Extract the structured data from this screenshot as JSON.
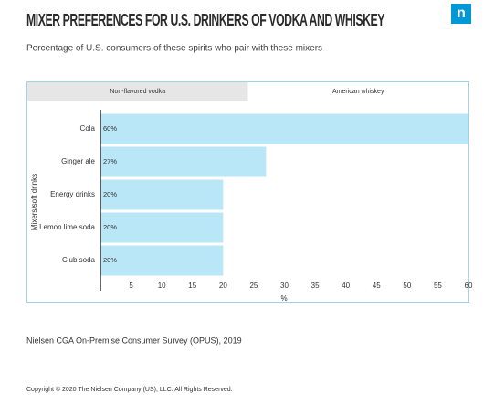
{
  "header": {
    "title": "MIXER PREFERENCES FOR U.S. DRINKERS OF VODKA AND WHISKEY",
    "subtitle": "Percentage of U.S. consumers of these spirits who pair with these mixers",
    "logo": "n"
  },
  "chart_data": {
    "type": "bar",
    "orientation": "horizontal",
    "tabs": [
      "Non-flavored vodka",
      "American whiskey"
    ],
    "active_tab": 1,
    "categories": [
      "Cola",
      "Ginger ale",
      "Energy drinks",
      "Lemon lime soda",
      "Club soda"
    ],
    "values": [
      60,
      27,
      20,
      20,
      20
    ],
    "value_labels": [
      "60%",
      "27%",
      "20%",
      "20%",
      "20%"
    ],
    "color": "#b9e7f7",
    "xlim": [
      0,
      60
    ],
    "xticks": [
      5,
      10,
      15,
      20,
      25,
      30,
      35,
      40,
      45,
      50,
      55,
      60
    ],
    "x_label": "%",
    "y_label": "Mixers/soft drinks",
    "grid": false
  },
  "footer": {
    "source": "Nielsen CGA On-Premise Consumer Survey (OPUS), 2019",
    "copyright": "Copyright © 2020 The Nielsen Company (US), LLC. All Rights Reserved."
  }
}
